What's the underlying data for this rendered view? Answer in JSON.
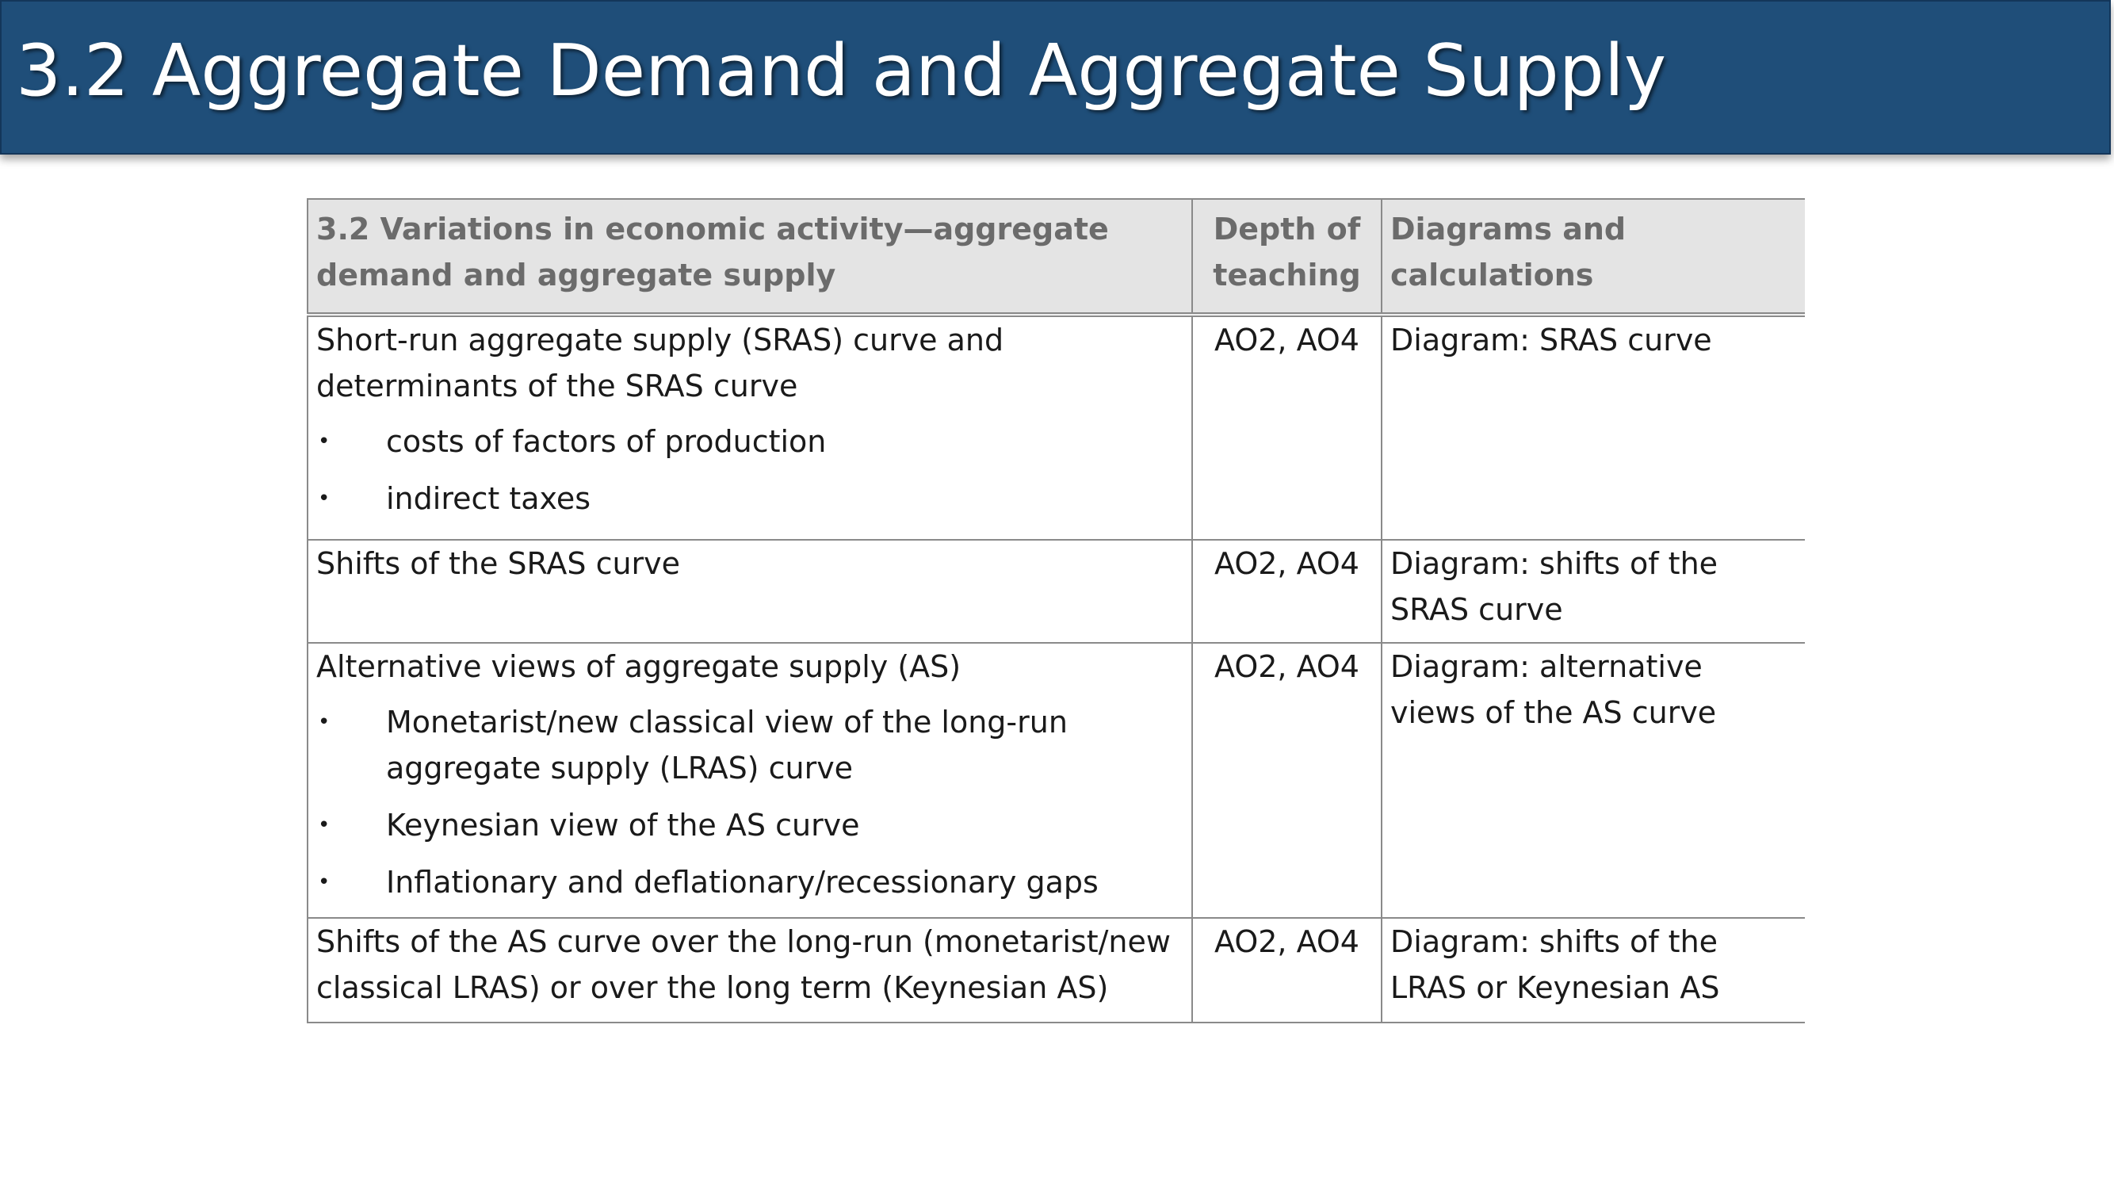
{
  "slide": {
    "title": "3.2 Aggregate Demand and Aggregate Supply"
  },
  "table": {
    "headers": {
      "topic": "3.2 Variations in economic activity—aggregate demand and aggregate supply",
      "depth": "Depth of teaching",
      "diagrams": "Diagrams and calculations"
    },
    "rows": [
      {
        "topic": "Short-run aggregate supply (SRAS) curve and determinants of the SRAS curve",
        "bullets": [
          "costs of factors of production",
          "indirect taxes"
        ],
        "depth": "AO2, AO4",
        "diagrams": "Diagram: SRAS curve"
      },
      {
        "topic": "Shifts of the SRAS curve",
        "bullets": [],
        "depth": "AO2, AO4",
        "diagrams": "Diagram: shifts of the SRAS curve"
      },
      {
        "topic": "Alternative views of aggregate supply (AS)",
        "bullets": [
          "Monetarist/new classical view of the long-run aggregate supply (LRAS) curve",
          "Keynesian view of the AS curve",
          "Inflationary and deflationary/recessionary gaps"
        ],
        "depth": "AO2, AO4",
        "diagrams": "Diagram: alternative views of the AS curve"
      },
      {
        "topic": "Shifts of the AS curve over the long-run (monetarist/new classical LRAS) or over the long term (Keynesian AS)",
        "bullets": [],
        "depth": "AO2, AO4",
        "diagrams": "Diagram: shifts of the LRAS or Keynesian AS"
      }
    ],
    "bullet_glyph": "•"
  },
  "colors": {
    "title_bar": "#1f4e79",
    "header_bg": "#e4e4e4",
    "header_text": "#6b6b6b",
    "border": "#8a8a8a"
  }
}
